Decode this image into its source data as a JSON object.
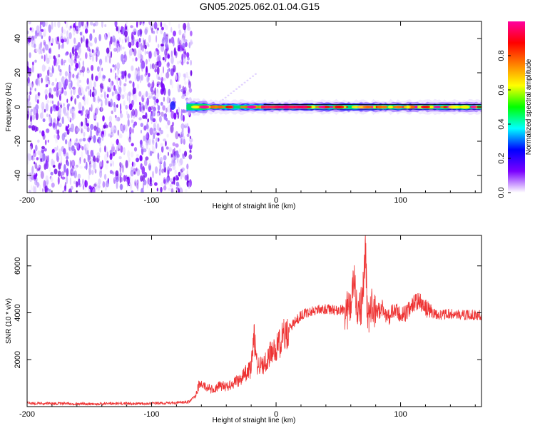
{
  "title": "GN05.2025.062.01.04.G15",
  "chart_data": [
    {
      "type": "heatmap",
      "xlabel": "Height of straight line (km)",
      "ylabel": "Frequency (Hz)",
      "xlim": [
        -200,
        165
      ],
      "ylim": [
        -50,
        50
      ],
      "x_ticks": [
        -200,
        -100,
        0,
        100
      ],
      "x_tick_labels": [
        "-200",
        "-100",
        "0",
        "100"
      ],
      "y_ticks": [
        -40,
        -20,
        0,
        20,
        40
      ],
      "y_tick_labels": [
        "-40",
        "-20",
        "0",
        "20",
        "40"
      ],
      "noise_region_x": [
        -200,
        -68
      ],
      "signal_band_x": [
        -72,
        165
      ],
      "signal_frequency": 0,
      "colorbar": {
        "label": "Normalized spectral amplitude",
        "range": [
          0,
          1
        ],
        "ticks": [
          0.0,
          0.2,
          0.4,
          0.6,
          0.8
        ],
        "tick_labels": [
          "0.0",
          "0.2",
          "0.4",
          "0.6",
          "0.8"
        ],
        "colors": [
          "#ffffff",
          "#7a00ff",
          "#0000ff",
          "#00ffff",
          "#00ff00",
          "#ffff00",
          "#ff8000",
          "#ff0000",
          "#ff00a0"
        ]
      }
    },
    {
      "type": "line",
      "xlabel": "Height of straight line (km)",
      "ylabel": "SNR (10 * v/v)",
      "xlim": [
        -200,
        165
      ],
      "ylim": [
        0,
        7300
      ],
      "x_ticks": [
        -200,
        -100,
        0,
        100
      ],
      "x_tick_labels": [
        "-200",
        "-100",
        "0",
        "100"
      ],
      "y_ticks": [
        2000,
        4000,
        6000
      ],
      "y_tick_labels": [
        "2000",
        "4000",
        "6000"
      ],
      "line_color": "#ee3333",
      "series": [
        {
          "x": [
            -200,
            -180,
            -160,
            -140,
            -120,
            -100,
            -80,
            -70,
            -65,
            -62,
            -60,
            -55,
            -50,
            -45,
            -40,
            -35,
            -30,
            -25,
            -20,
            -18,
            -15,
            -10,
            -5,
            0,
            5,
            10,
            15,
            20,
            25,
            30,
            40,
            50,
            60,
            63,
            65,
            68,
            70,
            72,
            73,
            74,
            75,
            78,
            80,
            85,
            90,
            95,
            100,
            105,
            110,
            115,
            120,
            125,
            130,
            140,
            150,
            165
          ],
          "y": [
            150,
            130,
            120,
            120,
            130,
            140,
            160,
            200,
            450,
            900,
            950,
            800,
            700,
            900,
            850,
            1000,
            1100,
            1400,
            1600,
            3200,
            1700,
            1800,
            2200,
            2500,
            2900,
            3300,
            3600,
            3900,
            4000,
            4100,
            4150,
            4100,
            4200,
            5500,
            3800,
            4100,
            5000,
            6800,
            4000,
            3200,
            4500,
            3900,
            4000,
            4200,
            3800,
            4100,
            3900,
            4000,
            4400,
            4500,
            4200,
            4000,
            3900,
            3950,
            3900,
            3900
          ]
        }
      ]
    }
  ]
}
